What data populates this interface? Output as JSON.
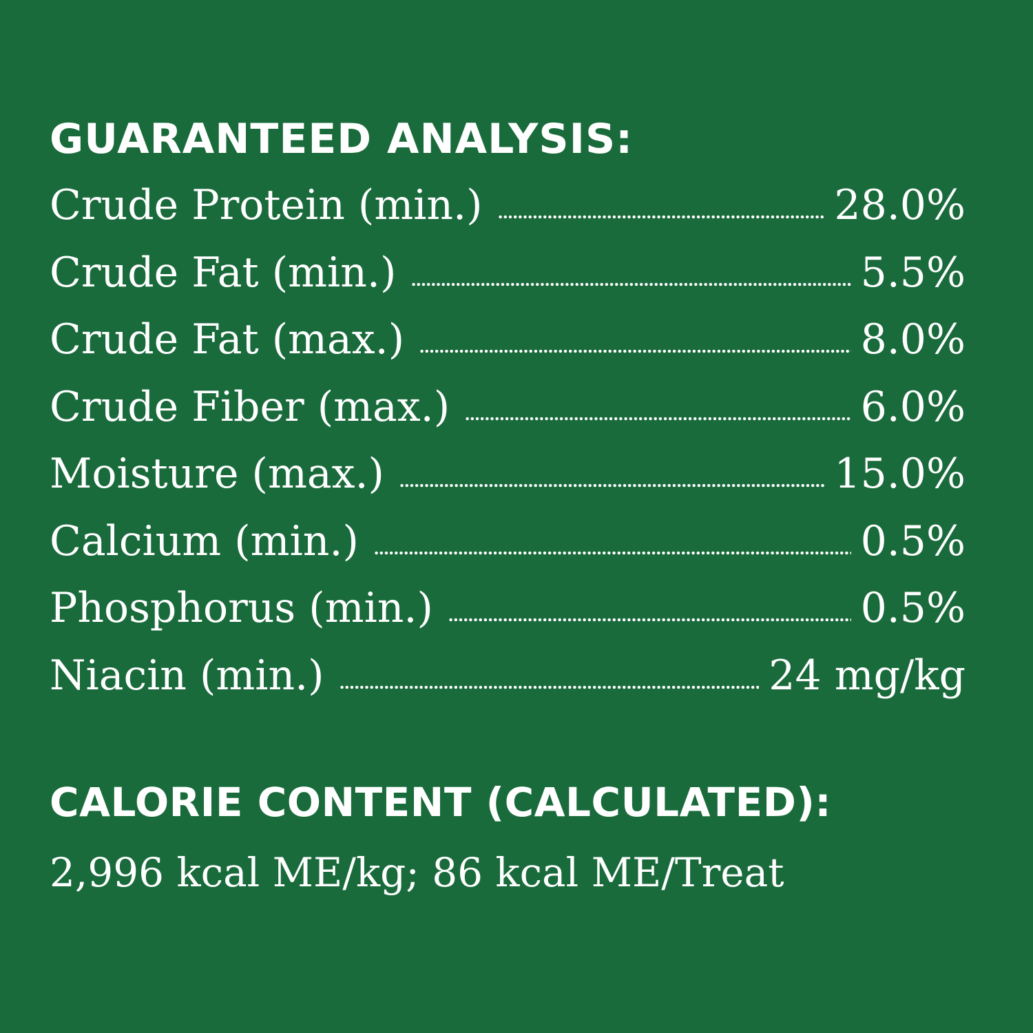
{
  "guaranteed_analysis": {
    "title": "GUARANTEED ANALYSIS:",
    "rows": [
      {
        "label": "Crude Protein (min.)",
        "value": "28.0%"
      },
      {
        "label": "Crude Fat (min.)",
        "value": "5.5%"
      },
      {
        "label": "Crude Fat (max.)",
        "value": "8.0%"
      },
      {
        "label": "Crude Fiber (max.)",
        "value": "6.0%"
      },
      {
        "label": "Moisture (max.)",
        "value": "15.0%"
      },
      {
        "label": "Calcium (min.)",
        "value": "0.5%"
      },
      {
        "label": "Phosphorus (min.)",
        "value": "0.5%"
      },
      {
        "label": "Niacin (min.)",
        "value": "24 mg/kg"
      }
    ]
  },
  "calorie_content": {
    "title": "CALORIE CONTENT (CALCULATED):",
    "text": "2,996 kcal ME/kg; 86 kcal ME/Treat"
  }
}
